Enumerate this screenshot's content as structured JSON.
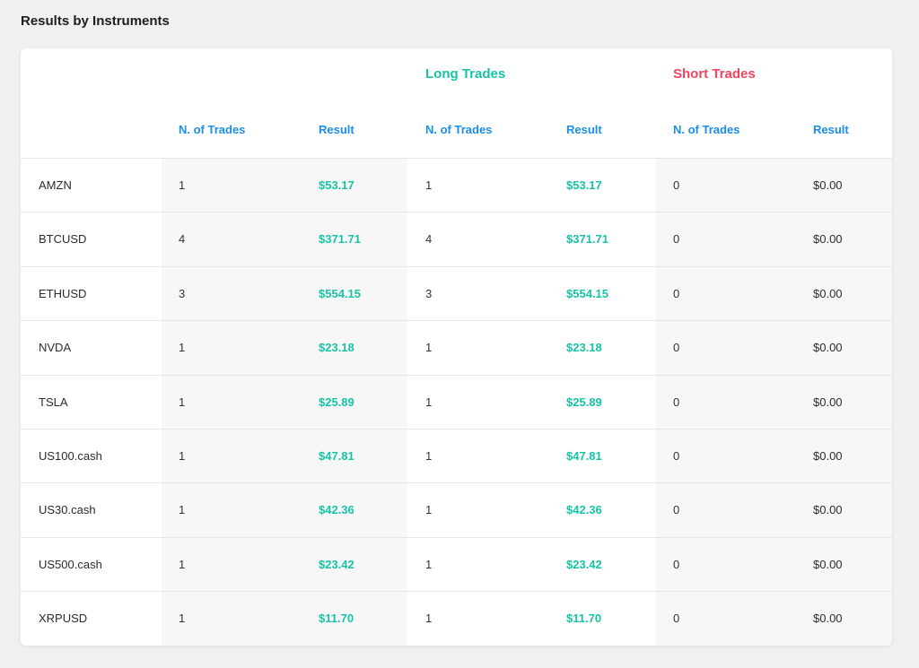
{
  "page": {
    "title": "Results by Instruments"
  },
  "groups": {
    "long": "Long Trades",
    "short": "Short Trades"
  },
  "headers": [
    "N. of Trades",
    "Result",
    "N. of Trades",
    "Result",
    "N. of Trades",
    "Result"
  ],
  "colors": {
    "positive": "#17c3a6",
    "long": "#17c3a6",
    "short": "#f5445f",
    "header": "#1a8ee8"
  },
  "rows": [
    {
      "instrument": "AMZN",
      "cells": [
        "1",
        "$53.17",
        "1",
        "$53.17",
        "0",
        "$0.00"
      ]
    },
    {
      "instrument": "BTCUSD",
      "cells": [
        "4",
        "$371.71",
        "4",
        "$371.71",
        "0",
        "$0.00"
      ]
    },
    {
      "instrument": "ETHUSD",
      "cells": [
        "3",
        "$554.15",
        "3",
        "$554.15",
        "0",
        "$0.00"
      ]
    },
    {
      "instrument": "NVDA",
      "cells": [
        "1",
        "$23.18",
        "1",
        "$23.18",
        "0",
        "$0.00"
      ]
    },
    {
      "instrument": "TSLA",
      "cells": [
        "1",
        "$25.89",
        "1",
        "$25.89",
        "0",
        "$0.00"
      ]
    },
    {
      "instrument": "US100.cash",
      "cells": [
        "1",
        "$47.81",
        "1",
        "$47.81",
        "0",
        "$0.00"
      ]
    },
    {
      "instrument": "US30.cash",
      "cells": [
        "1",
        "$42.36",
        "1",
        "$42.36",
        "0",
        "$0.00"
      ]
    },
    {
      "instrument": "US500.cash",
      "cells": [
        "1",
        "$23.42",
        "1",
        "$23.42",
        "0",
        "$0.00"
      ]
    },
    {
      "instrument": "XRPUSD",
      "cells": [
        "1",
        "$11.70",
        "1",
        "$11.70",
        "0",
        "$0.00"
      ]
    }
  ]
}
